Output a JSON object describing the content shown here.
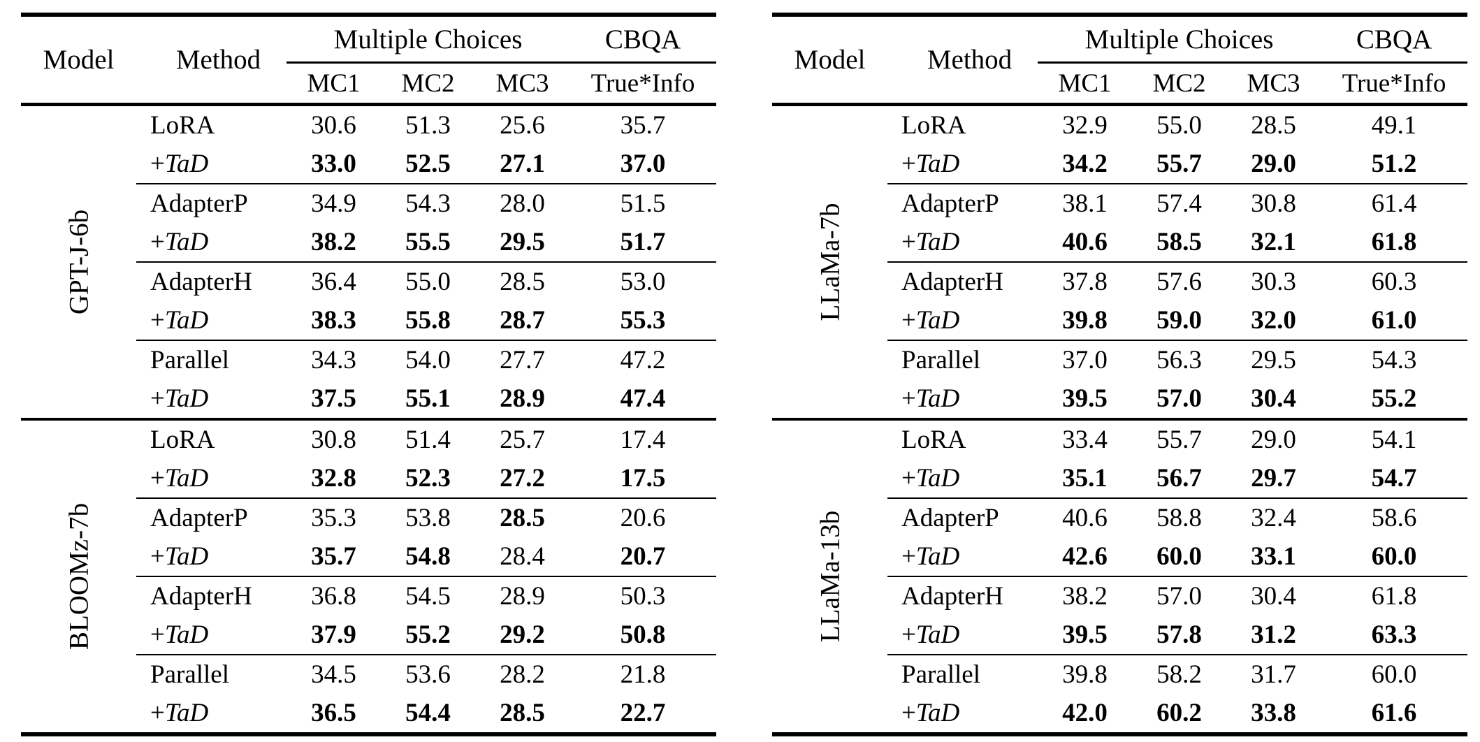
{
  "page": {
    "type": "academic-paper-results-table",
    "colors": {
      "text": "#000000",
      "background": "#ffffff",
      "rule": "#000000"
    }
  },
  "tables": [
    {
      "header": {
        "model": "Model",
        "method": "Method",
        "multiple_choices": "Multiple Choices",
        "cbqa": "CBQA",
        "subcolumns": [
          "MC1",
          "MC2",
          "MC3",
          "True*Info"
        ]
      },
      "sections": [
        {
          "model": "GPT-J-6b",
          "groups": [
            {
              "rows": [
                {
                  "method": "LoRA",
                  "tad": false,
                  "values": [
                    "30.6",
                    "51.3",
                    "25.6",
                    "35.7"
                  ],
                  "bold": [
                    false,
                    false,
                    false,
                    false
                  ]
                },
                {
                  "method": "+TaD",
                  "tad": true,
                  "values": [
                    "33.0",
                    "52.5",
                    "27.1",
                    "37.0"
                  ],
                  "bold": [
                    true,
                    true,
                    true,
                    true
                  ]
                }
              ]
            },
            {
              "rows": [
                {
                  "method": "AdapterP",
                  "tad": false,
                  "values": [
                    "34.9",
                    "54.3",
                    "28.0",
                    "51.5"
                  ],
                  "bold": [
                    false,
                    false,
                    false,
                    false
                  ]
                },
                {
                  "method": "+TaD",
                  "tad": true,
                  "values": [
                    "38.2",
                    "55.5",
                    "29.5",
                    "51.7"
                  ],
                  "bold": [
                    true,
                    true,
                    true,
                    true
                  ]
                }
              ]
            },
            {
              "rows": [
                {
                  "method": "AdapterH",
                  "tad": false,
                  "values": [
                    "36.4",
                    "55.0",
                    "28.5",
                    "53.0"
                  ],
                  "bold": [
                    false,
                    false,
                    false,
                    false
                  ]
                },
                {
                  "method": "+TaD",
                  "tad": true,
                  "values": [
                    "38.3",
                    "55.8",
                    "28.7",
                    "55.3"
                  ],
                  "bold": [
                    true,
                    true,
                    true,
                    true
                  ]
                }
              ]
            },
            {
              "rows": [
                {
                  "method": "Parallel",
                  "tad": false,
                  "values": [
                    "34.3",
                    "54.0",
                    "27.7",
                    "47.2"
                  ],
                  "bold": [
                    false,
                    false,
                    false,
                    false
                  ]
                },
                {
                  "method": "+TaD",
                  "tad": true,
                  "values": [
                    "37.5",
                    "55.1",
                    "28.9",
                    "47.4"
                  ],
                  "bold": [
                    true,
                    true,
                    true,
                    true
                  ]
                }
              ]
            }
          ]
        },
        {
          "model": "BLOOMz-7b",
          "groups": [
            {
              "rows": [
                {
                  "method": "LoRA",
                  "tad": false,
                  "values": [
                    "30.8",
                    "51.4",
                    "25.7",
                    "17.4"
                  ],
                  "bold": [
                    false,
                    false,
                    false,
                    false
                  ]
                },
                {
                  "method": "+TaD",
                  "tad": true,
                  "values": [
                    "32.8",
                    "52.3",
                    "27.2",
                    "17.5"
                  ],
                  "bold": [
                    true,
                    true,
                    true,
                    true
                  ]
                }
              ]
            },
            {
              "rows": [
                {
                  "method": "AdapterP",
                  "tad": false,
                  "values": [
                    "35.3",
                    "53.8",
                    "28.5",
                    "20.6"
                  ],
                  "bold": [
                    false,
                    false,
                    true,
                    false
                  ]
                },
                {
                  "method": "+TaD",
                  "tad": true,
                  "values": [
                    "35.7",
                    "54.8",
                    "28.4",
                    "20.7"
                  ],
                  "bold": [
                    true,
                    true,
                    false,
                    true
                  ]
                }
              ]
            },
            {
              "rows": [
                {
                  "method": "AdapterH",
                  "tad": false,
                  "values": [
                    "36.8",
                    "54.5",
                    "28.9",
                    "50.3"
                  ],
                  "bold": [
                    false,
                    false,
                    false,
                    false
                  ]
                },
                {
                  "method": "+TaD",
                  "tad": true,
                  "values": [
                    "37.9",
                    "55.2",
                    "29.2",
                    "50.8"
                  ],
                  "bold": [
                    true,
                    true,
                    true,
                    true
                  ]
                }
              ]
            },
            {
              "rows": [
                {
                  "method": "Parallel",
                  "tad": false,
                  "values": [
                    "34.5",
                    "53.6",
                    "28.2",
                    "21.8"
                  ],
                  "bold": [
                    false,
                    false,
                    false,
                    false
                  ]
                },
                {
                  "method": "+TaD",
                  "tad": true,
                  "values": [
                    "36.5",
                    "54.4",
                    "28.5",
                    "22.7"
                  ],
                  "bold": [
                    true,
                    true,
                    true,
                    true
                  ]
                }
              ]
            }
          ]
        }
      ]
    },
    {
      "header": {
        "model": "Model",
        "method": "Method",
        "multiple_choices": "Multiple Choices",
        "cbqa": "CBQA",
        "subcolumns": [
          "MC1",
          "MC2",
          "MC3",
          "True*Info"
        ]
      },
      "sections": [
        {
          "model": "LLaMa-7b",
          "groups": [
            {
              "rows": [
                {
                  "method": "LoRA",
                  "tad": false,
                  "values": [
                    "32.9",
                    "55.0",
                    "28.5",
                    "49.1"
                  ],
                  "bold": [
                    false,
                    false,
                    false,
                    false
                  ]
                },
                {
                  "method": "+TaD",
                  "tad": true,
                  "values": [
                    "34.2",
                    "55.7",
                    "29.0",
                    "51.2"
                  ],
                  "bold": [
                    true,
                    true,
                    true,
                    true
                  ]
                }
              ]
            },
            {
              "rows": [
                {
                  "method": "AdapterP",
                  "tad": false,
                  "values": [
                    "38.1",
                    "57.4",
                    "30.8",
                    "61.4"
                  ],
                  "bold": [
                    false,
                    false,
                    false,
                    false
                  ]
                },
                {
                  "method": "+TaD",
                  "tad": true,
                  "values": [
                    "40.6",
                    "58.5",
                    "32.1",
                    "61.8"
                  ],
                  "bold": [
                    true,
                    true,
                    true,
                    true
                  ]
                }
              ]
            },
            {
              "rows": [
                {
                  "method": "AdapterH",
                  "tad": false,
                  "values": [
                    "37.8",
                    "57.6",
                    "30.3",
                    "60.3"
                  ],
                  "bold": [
                    false,
                    false,
                    false,
                    false
                  ]
                },
                {
                  "method": "+TaD",
                  "tad": true,
                  "values": [
                    "39.8",
                    "59.0",
                    "32.0",
                    "61.0"
                  ],
                  "bold": [
                    true,
                    true,
                    true,
                    true
                  ]
                }
              ]
            },
            {
              "rows": [
                {
                  "method": "Parallel",
                  "tad": false,
                  "values": [
                    "37.0",
                    "56.3",
                    "29.5",
                    "54.3"
                  ],
                  "bold": [
                    false,
                    false,
                    false,
                    false
                  ]
                },
                {
                  "method": "+TaD",
                  "tad": true,
                  "values": [
                    "39.5",
                    "57.0",
                    "30.4",
                    "55.2"
                  ],
                  "bold": [
                    true,
                    true,
                    true,
                    true
                  ]
                }
              ]
            }
          ]
        },
        {
          "model": "LLaMa-13b",
          "groups": [
            {
              "rows": [
                {
                  "method": "LoRA",
                  "tad": false,
                  "values": [
                    "33.4",
                    "55.7",
                    "29.0",
                    "54.1"
                  ],
                  "bold": [
                    false,
                    false,
                    false,
                    false
                  ]
                },
                {
                  "method": "+TaD",
                  "tad": true,
                  "values": [
                    "35.1",
                    "56.7",
                    "29.7",
                    "54.7"
                  ],
                  "bold": [
                    true,
                    true,
                    true,
                    true
                  ]
                }
              ]
            },
            {
              "rows": [
                {
                  "method": "AdapterP",
                  "tad": false,
                  "values": [
                    "40.6",
                    "58.8",
                    "32.4",
                    "58.6"
                  ],
                  "bold": [
                    false,
                    false,
                    false,
                    false
                  ]
                },
                {
                  "method": "+TaD",
                  "tad": true,
                  "values": [
                    "42.6",
                    "60.0",
                    "33.1",
                    "60.0"
                  ],
                  "bold": [
                    true,
                    true,
                    true,
                    true
                  ]
                }
              ]
            },
            {
              "rows": [
                {
                  "method": "AdapterH",
                  "tad": false,
                  "values": [
                    "38.2",
                    "57.0",
                    "30.4",
                    "61.8"
                  ],
                  "bold": [
                    false,
                    false,
                    false,
                    false
                  ]
                },
                {
                  "method": "+TaD",
                  "tad": true,
                  "values": [
                    "39.5",
                    "57.8",
                    "31.2",
                    "63.3"
                  ],
                  "bold": [
                    true,
                    true,
                    true,
                    true
                  ]
                }
              ]
            },
            {
              "rows": [
                {
                  "method": "Parallel",
                  "tad": false,
                  "values": [
                    "39.8",
                    "58.2",
                    "31.7",
                    "60.0"
                  ],
                  "bold": [
                    false,
                    false,
                    false,
                    false
                  ]
                },
                {
                  "method": "+TaD",
                  "tad": true,
                  "values": [
                    "42.0",
                    "60.2",
                    "33.8",
                    "61.6"
                  ],
                  "bold": [
                    true,
                    true,
                    true,
                    true
                  ]
                }
              ]
            }
          ]
        }
      ]
    }
  ]
}
